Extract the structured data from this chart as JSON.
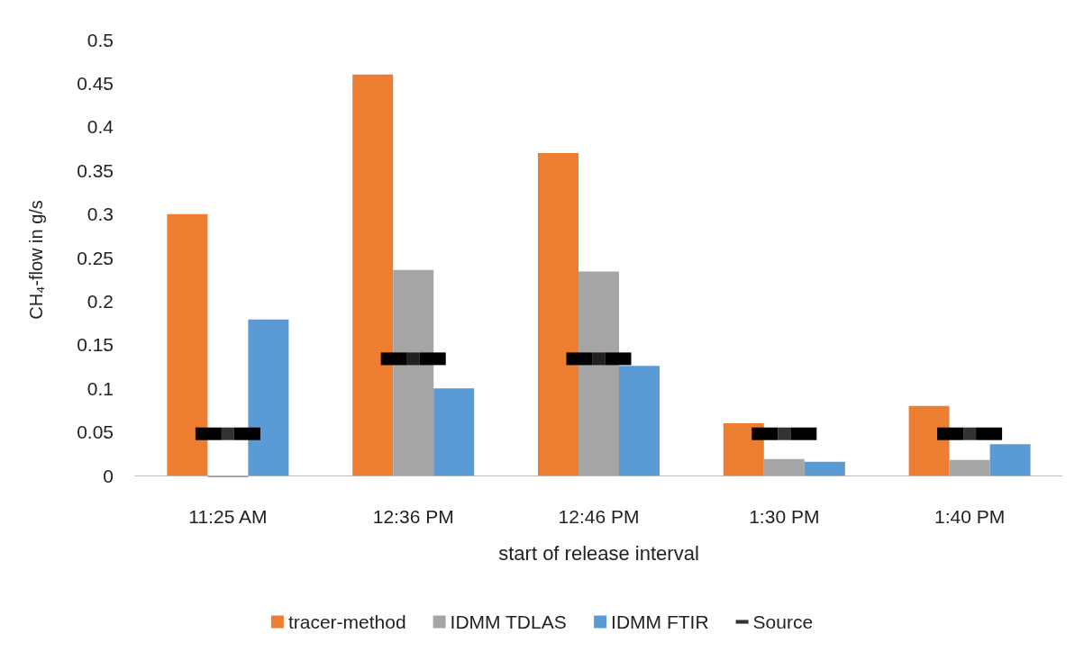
{
  "chart_data": {
    "type": "bar",
    "xlabel": "start of release interval",
    "ylabel": "CH₄-flow in g/s",
    "categories": [
      "11:25 AM",
      "12:36 PM",
      "12:46 PM",
      "1:30 PM",
      "1:40 PM"
    ],
    "series": [
      {
        "name": "tracer-method",
        "color": "#ed7d31",
        "values": [
          0.3,
          0.46,
          0.37,
          0.06,
          0.08
        ]
      },
      {
        "name": "IDMM TDLAS",
        "color": "#a5a5a5",
        "values": [
          -0.002,
          0.236,
          0.234,
          0.019,
          0.018
        ]
      },
      {
        "name": "IDMM FTIR",
        "color": "#5b9bd5",
        "values": [
          0.179,
          0.1,
          0.126,
          0.016,
          0.036
        ]
      },
      {
        "name": "Source",
        "color": "#000000",
        "type": "scatter",
        "values": [
          0.048,
          0.134,
          0.134,
          0.048,
          0.048
        ]
      }
    ],
    "ylim": [
      -0.005,
      0.5
    ],
    "yticks": [
      0,
      0.05,
      0.1,
      0.15,
      0.2,
      0.25,
      0.3,
      0.35,
      0.4,
      0.45,
      0.5
    ],
    "grid": false,
    "legend": "bottom"
  }
}
